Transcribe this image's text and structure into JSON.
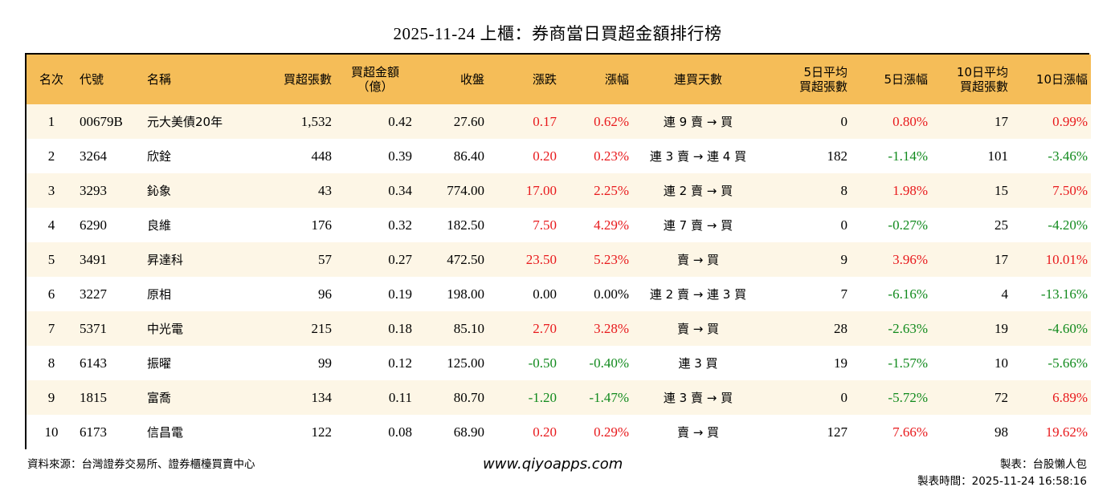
{
  "title": "2025-11-24 上櫃：券商當日買超金額排行榜",
  "colors": {
    "header_bg": "#f5bd58",
    "row_alt_bg": "#fdf6e6",
    "up": "#e8191c",
    "down": "#118a1d"
  },
  "table": {
    "headers": [
      {
        "line1": "名次",
        "line2": ""
      },
      {
        "line1": "代號",
        "line2": ""
      },
      {
        "line1": "名稱",
        "line2": ""
      },
      {
        "line1": "買超張數",
        "line2": ""
      },
      {
        "line1": "買超金額",
        "line2": "（億）"
      },
      {
        "line1": "收盤",
        "line2": ""
      },
      {
        "line1": "漲跌",
        "line2": ""
      },
      {
        "line1": "漲幅",
        "line2": ""
      },
      {
        "line1": "連買天數",
        "line2": ""
      },
      {
        "line1": "5日平均",
        "line2": "買超張數"
      },
      {
        "line1": "5日漲幅",
        "line2": ""
      },
      {
        "line1": "10日平均",
        "line2": "買超張數"
      },
      {
        "line1": "10日漲幅",
        "line2": ""
      }
    ],
    "rows": [
      {
        "rank": "1",
        "code": "00679B",
        "name": "元大美債20年",
        "buy_lots": "1,532",
        "buy_amount": "0.42",
        "close": "27.60",
        "change": "0.17",
        "change_dir": "pos",
        "pct": "0.62%",
        "pct_dir": "pos",
        "streak": "連 9 賣 → 買",
        "avg5": "0",
        "pct5": "0.80%",
        "pct5_dir": "pos",
        "avg10": "17",
        "pct10": "0.99%",
        "pct10_dir": "pos"
      },
      {
        "rank": "2",
        "code": "3264",
        "name": "欣銓",
        "buy_lots": "448",
        "buy_amount": "0.39",
        "close": "86.40",
        "change": "0.20",
        "change_dir": "pos",
        "pct": "0.23%",
        "pct_dir": "pos",
        "streak": "連 3 賣 → 連 4 買",
        "avg5": "182",
        "pct5": "-1.14%",
        "pct5_dir": "neg",
        "avg10": "101",
        "pct10": "-3.46%",
        "pct10_dir": "neg"
      },
      {
        "rank": "3",
        "code": "3293",
        "name": "鈊象",
        "buy_lots": "43",
        "buy_amount": "0.34",
        "close": "774.00",
        "change": "17.00",
        "change_dir": "pos",
        "pct": "2.25%",
        "pct_dir": "pos",
        "streak": "連 2 賣 → 買",
        "avg5": "8",
        "pct5": "1.98%",
        "pct5_dir": "pos",
        "avg10": "15",
        "pct10": "7.50%",
        "pct10_dir": "pos"
      },
      {
        "rank": "4",
        "code": "6290",
        "name": "良維",
        "buy_lots": "176",
        "buy_amount": "0.32",
        "close": "182.50",
        "change": "7.50",
        "change_dir": "pos",
        "pct": "4.29%",
        "pct_dir": "pos",
        "streak": "連 7 賣 → 買",
        "avg5": "0",
        "pct5": "-0.27%",
        "pct5_dir": "neg",
        "avg10": "25",
        "pct10": "-4.20%",
        "pct10_dir": "neg"
      },
      {
        "rank": "5",
        "code": "3491",
        "name": "昇達科",
        "buy_lots": "57",
        "buy_amount": "0.27",
        "close": "472.50",
        "change": "23.50",
        "change_dir": "pos",
        "pct": "5.23%",
        "pct_dir": "pos",
        "streak": "賣 → 買",
        "avg5": "9",
        "pct5": "3.96%",
        "pct5_dir": "pos",
        "avg10": "17",
        "pct10": "10.01%",
        "pct10_dir": "pos"
      },
      {
        "rank": "6",
        "code": "3227",
        "name": "原相",
        "buy_lots": "96",
        "buy_amount": "0.19",
        "close": "198.00",
        "change": "0.00",
        "change_dir": "flat",
        "pct": "0.00%",
        "pct_dir": "flat",
        "streak": "連 2 賣 → 連 3 買",
        "avg5": "7",
        "pct5": "-6.16%",
        "pct5_dir": "neg",
        "avg10": "4",
        "pct10": "-13.16%",
        "pct10_dir": "neg"
      },
      {
        "rank": "7",
        "code": "5371",
        "name": "中光電",
        "buy_lots": "215",
        "buy_amount": "0.18",
        "close": "85.10",
        "change": "2.70",
        "change_dir": "pos",
        "pct": "3.28%",
        "pct_dir": "pos",
        "streak": "賣 → 買",
        "avg5": "28",
        "pct5": "-2.63%",
        "pct5_dir": "neg",
        "avg10": "19",
        "pct10": "-4.60%",
        "pct10_dir": "neg"
      },
      {
        "rank": "8",
        "code": "6143",
        "name": "振曜",
        "buy_lots": "99",
        "buy_amount": "0.12",
        "close": "125.00",
        "change": "-0.50",
        "change_dir": "neg",
        "pct": "-0.40%",
        "pct_dir": "neg",
        "streak": "連 3 買",
        "avg5": "19",
        "pct5": "-1.57%",
        "pct5_dir": "neg",
        "avg10": "10",
        "pct10": "-5.66%",
        "pct10_dir": "neg"
      },
      {
        "rank": "9",
        "code": "1815",
        "name": "富喬",
        "buy_lots": "134",
        "buy_amount": "0.11",
        "close": "80.70",
        "change": "-1.20",
        "change_dir": "neg",
        "pct": "-1.47%",
        "pct_dir": "neg",
        "streak": "連 3 賣 → 買",
        "avg5": "0",
        "pct5": "-5.72%",
        "pct5_dir": "neg",
        "avg10": "72",
        "pct10": "6.89%",
        "pct10_dir": "pos"
      },
      {
        "rank": "10",
        "code": "6173",
        "name": "信昌電",
        "buy_lots": "122",
        "buy_amount": "0.08",
        "close": "68.90",
        "change": "0.20",
        "change_dir": "pos",
        "pct": "0.29%",
        "pct_dir": "pos",
        "streak": "賣 → 買",
        "avg5": "127",
        "pct5": "7.66%",
        "pct5_dir": "pos",
        "avg10": "98",
        "pct10": "19.62%",
        "pct10_dir": "pos"
      }
    ]
  },
  "footer": {
    "source": "資料來源：台灣證券交易所、證券櫃檯買賣中心",
    "website": "www.qiyoapps.com",
    "author": "製表：台股懶人包",
    "made_time": "製表時間：2025-11-24 16:58:16"
  }
}
